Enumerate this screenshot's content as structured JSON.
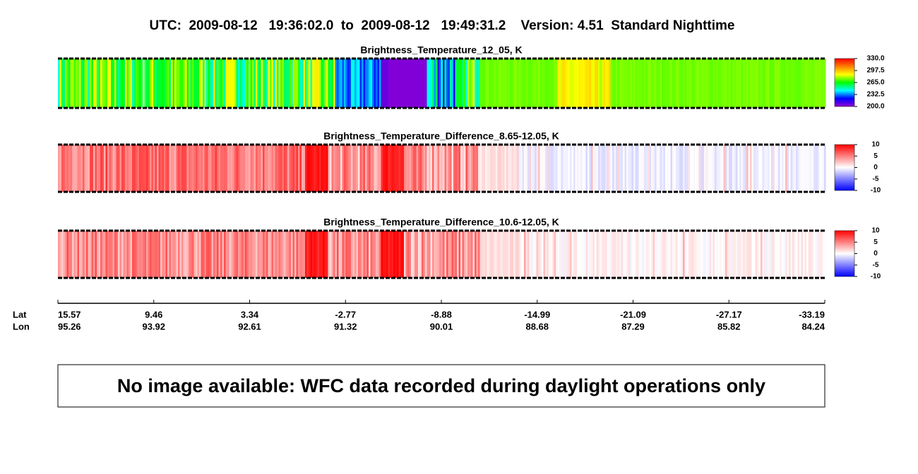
{
  "header": {
    "title": "UTC:  2009-08-12   19:36:02.0  to  2009-08-12   19:49:31.2    Version: 4.51  Standard Nighttime"
  },
  "panels": [
    {
      "title": "Brightness_Temperature_12_05, K",
      "colorbar": {
        "lim": [
          200,
          330
        ],
        "colors": [
          "#9400d3",
          "#0000ff",
          "#00ffff",
          "#00ff00",
          "#ffff00",
          "#ff8000",
          "#ff0000"
        ],
        "ticks": [
          {
            "value": 330,
            "label": "330.0"
          },
          {
            "value": 297.5,
            "label": "297.5"
          },
          {
            "value": 265,
            "label": "265.0"
          },
          {
            "value": 232.5,
            "label": "232.5"
          },
          {
            "value": 200,
            "label": "200.0"
          }
        ]
      }
    },
    {
      "title": "Brightness_Temperature_Difference_8.65-12.05, K",
      "colorbar": {
        "lim": [
          -10,
          10
        ],
        "colors": [
          "#0000ff",
          "#ffffff",
          "#ff0000"
        ],
        "ticks": [
          10,
          5,
          0,
          -5,
          -10
        ]
      }
    },
    {
      "title": "Brightness_Temperature_Difference_10.6-12.05, K",
      "colorbar": {
        "lim": [
          -10,
          10
        ],
        "colors": [
          "#0000ff",
          "#ffffff",
          "#ff0000"
        ],
        "ticks": [
          10,
          5,
          0,
          -5,
          -10
        ]
      }
    }
  ],
  "axis": {
    "lat_label": "Lat",
    "lon_label": "Lon",
    "lat": [
      15.57,
      9.46,
      3.34,
      -2.77,
      -8.88,
      -14.99,
      -21.09,
      -27.17,
      -33.19
    ],
    "lon": [
      95.26,
      93.92,
      92.61,
      91.32,
      90.01,
      88.68,
      87.29,
      85.82,
      84.24
    ]
  },
  "message": "No image available: WFC data recorded during daylight operations only"
}
